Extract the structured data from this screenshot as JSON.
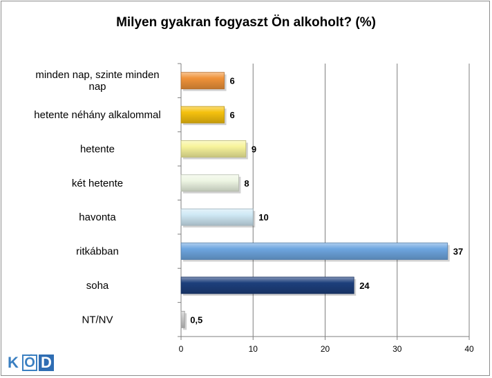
{
  "chart_data": {
    "type": "bar",
    "orientation": "horizontal",
    "title": "Milyen gyakran fogyaszt Ön alkoholt? (%)",
    "categories": [
      [
        "minden nap, szinte minden",
        "nap"
      ],
      [
        "hetente néhány alkalommal"
      ],
      [
        "hetente"
      ],
      [
        "két hetente"
      ],
      [
        "havonta"
      ],
      [
        "ritkábban"
      ],
      [
        "soha"
      ],
      [
        "NT/NV"
      ]
    ],
    "values": [
      6,
      6,
      9,
      8,
      10,
      37,
      24,
      0.5
    ],
    "value_labels": [
      "6",
      "6",
      "9",
      "8",
      "10",
      "37",
      "24",
      "0,5"
    ],
    "bar_colors": [
      "#f0933a",
      "#f5c10e",
      "#f8f49c",
      "#eef6e4",
      "#cfe9f5",
      "#6ea6e0",
      "#1d3f7c",
      "#c9c9c9"
    ],
    "xlim": [
      0,
      40
    ],
    "xticks": [
      "0",
      "10",
      "20",
      "30",
      "40"
    ],
    "grid": true
  },
  "logo": {
    "letters": [
      "K",
      "Ó",
      "D"
    ]
  }
}
